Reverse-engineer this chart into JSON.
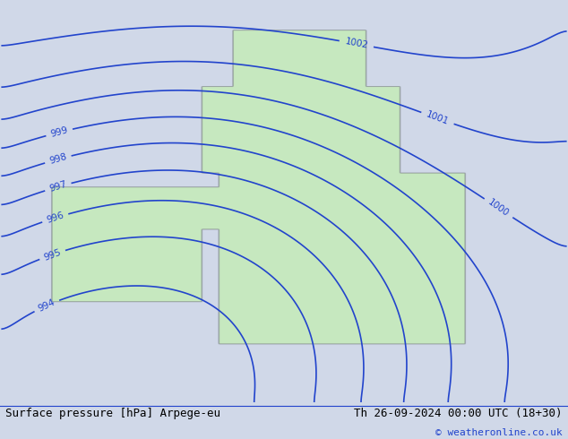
{
  "title_left": "Surface pressure [hPa] Arpege-eu",
  "title_right": "Th 26-09-2024 00:00 UTC (18+30)",
  "copyright": "© weatheronline.co.uk",
  "bg_color": "#d0d8e8",
  "land_color": "#c8e8c0",
  "contour_color": "#2244cc",
  "contour_linewidth": 1.2,
  "label_fontsize": 7.5,
  "footer_fontsize": 9,
  "copyright_fontsize": 8,
  "pressure_min": 980,
  "pressure_max": 1008,
  "pressure_step": 1
}
